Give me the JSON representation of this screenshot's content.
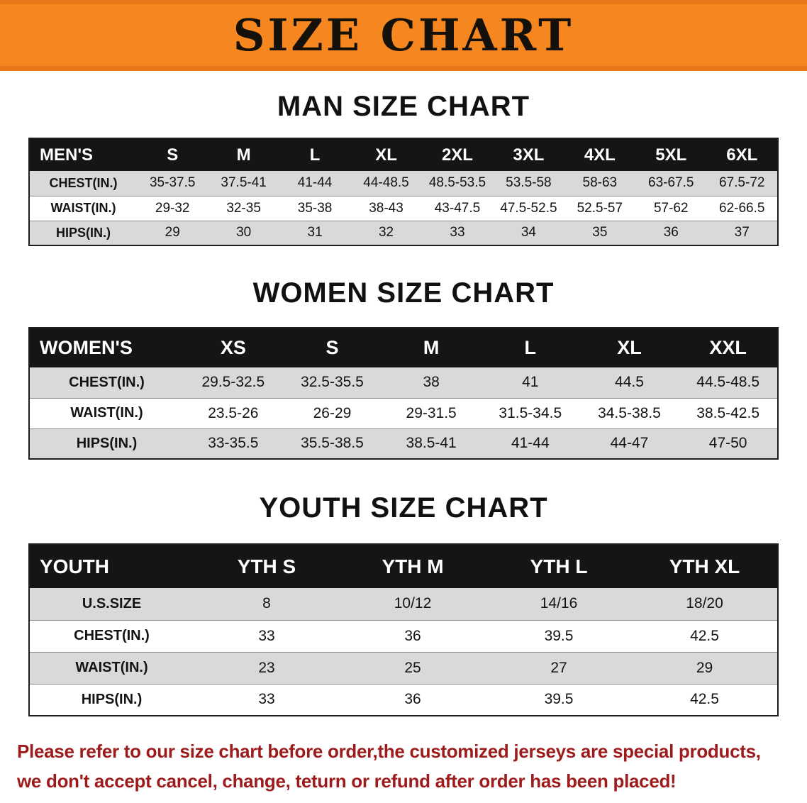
{
  "banner": {
    "title": "SIZE CHART"
  },
  "sections": [
    {
      "name": "men",
      "heading": "MAN SIZE CHART",
      "header": [
        "MEN'S",
        "S",
        "M",
        "L",
        "XL",
        "2XL",
        "3XL",
        "4XL",
        "5XL",
        "6XL"
      ],
      "rows": [
        [
          "CHEST(IN.)",
          "35-37.5",
          "37.5-41",
          "41-44",
          "44-48.5",
          "48.5-53.5",
          "53.5-58",
          "58-63",
          "63-67.5",
          "67.5-72"
        ],
        [
          "WAIST(IN.)",
          "29-32",
          "32-35",
          "35-38",
          "38-43",
          "43-47.5",
          "47.5-52.5",
          "52.5-57",
          "57-62",
          "62-66.5"
        ],
        [
          "HIPS(IN.)",
          "29",
          "30",
          "31",
          "32",
          "33",
          "34",
          "35",
          "36",
          "37"
        ]
      ]
    },
    {
      "name": "women",
      "heading": "WOMEN SIZE CHART",
      "header": [
        "WOMEN'S",
        "XS",
        "S",
        "M",
        "L",
        "XL",
        "XXL"
      ],
      "rows": [
        [
          "CHEST(IN.)",
          "29.5-32.5",
          "32.5-35.5",
          "38",
          "41",
          "44.5",
          "44.5-48.5"
        ],
        [
          "WAIST(IN.)",
          "23.5-26",
          "26-29",
          "29-31.5",
          "31.5-34.5",
          "34.5-38.5",
          "38.5-42.5"
        ],
        [
          "HIPS(IN.)",
          "33-35.5",
          "35.5-38.5",
          "38.5-41",
          "41-44",
          "44-47",
          "47-50"
        ]
      ]
    },
    {
      "name": "youth",
      "heading": "YOUTH SIZE CHART",
      "header": [
        "YOUTH",
        "YTH S",
        "YTH M",
        "YTH L",
        "YTH XL"
      ],
      "rows": [
        [
          "U.S.SIZE",
          "8",
          "10/12",
          "14/16",
          "18/20"
        ],
        [
          "CHEST(IN.)",
          "33",
          "36",
          "39.5",
          "42.5"
        ],
        [
          "WAIST(IN.)",
          "23",
          "25",
          "27",
          "29"
        ],
        [
          "HIPS(IN.)",
          "33",
          "36",
          "39.5",
          "42.5"
        ]
      ]
    }
  ],
  "disclaimer": {
    "line1": "Please refer to our size chart before order,the customized jerseys are special products,",
    "line2": "we don't accept cancel, change, teturn or refund after order has been placed!"
  },
  "colors": {
    "banner_orange": "#f6861f",
    "banner_orange_dark": "#e8771a",
    "table_header_bg": "#171513",
    "row_stripe_gray": "#d9d9d9",
    "disclaimer_red": "#9e1b1b"
  }
}
